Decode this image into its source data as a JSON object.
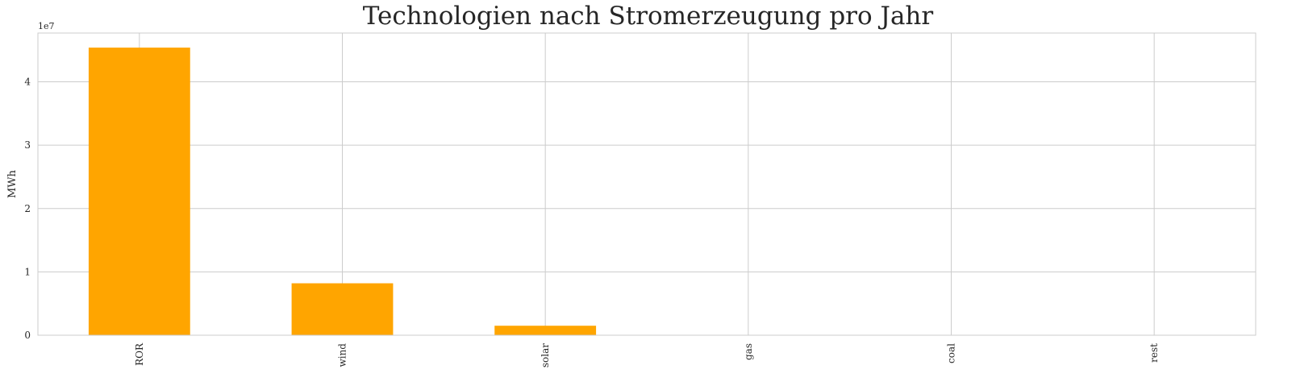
{
  "chart_data": {
    "type": "bar",
    "title": "Technologien nach Stromerzeugung pro Jahr",
    "xlabel": "",
    "ylabel": "MWh",
    "y_offset_label": "1e7",
    "categories": [
      "ROR",
      "wind",
      "solar",
      "gas",
      "coal",
      "rest"
    ],
    "values": [
      45400000,
      8200000,
      1500000,
      0,
      0,
      0
    ],
    "ylim": [
      0,
      47700000
    ],
    "yticks": [
      0,
      10000000,
      20000000,
      30000000,
      40000000
    ],
    "ytick_labels": [
      "0",
      "1",
      "2",
      "3",
      "4"
    ],
    "grid": true,
    "bar_color": "#ffa500",
    "grid_color": "#cccccc",
    "spine_color": "#cccccc",
    "text_color": "#262626"
  }
}
